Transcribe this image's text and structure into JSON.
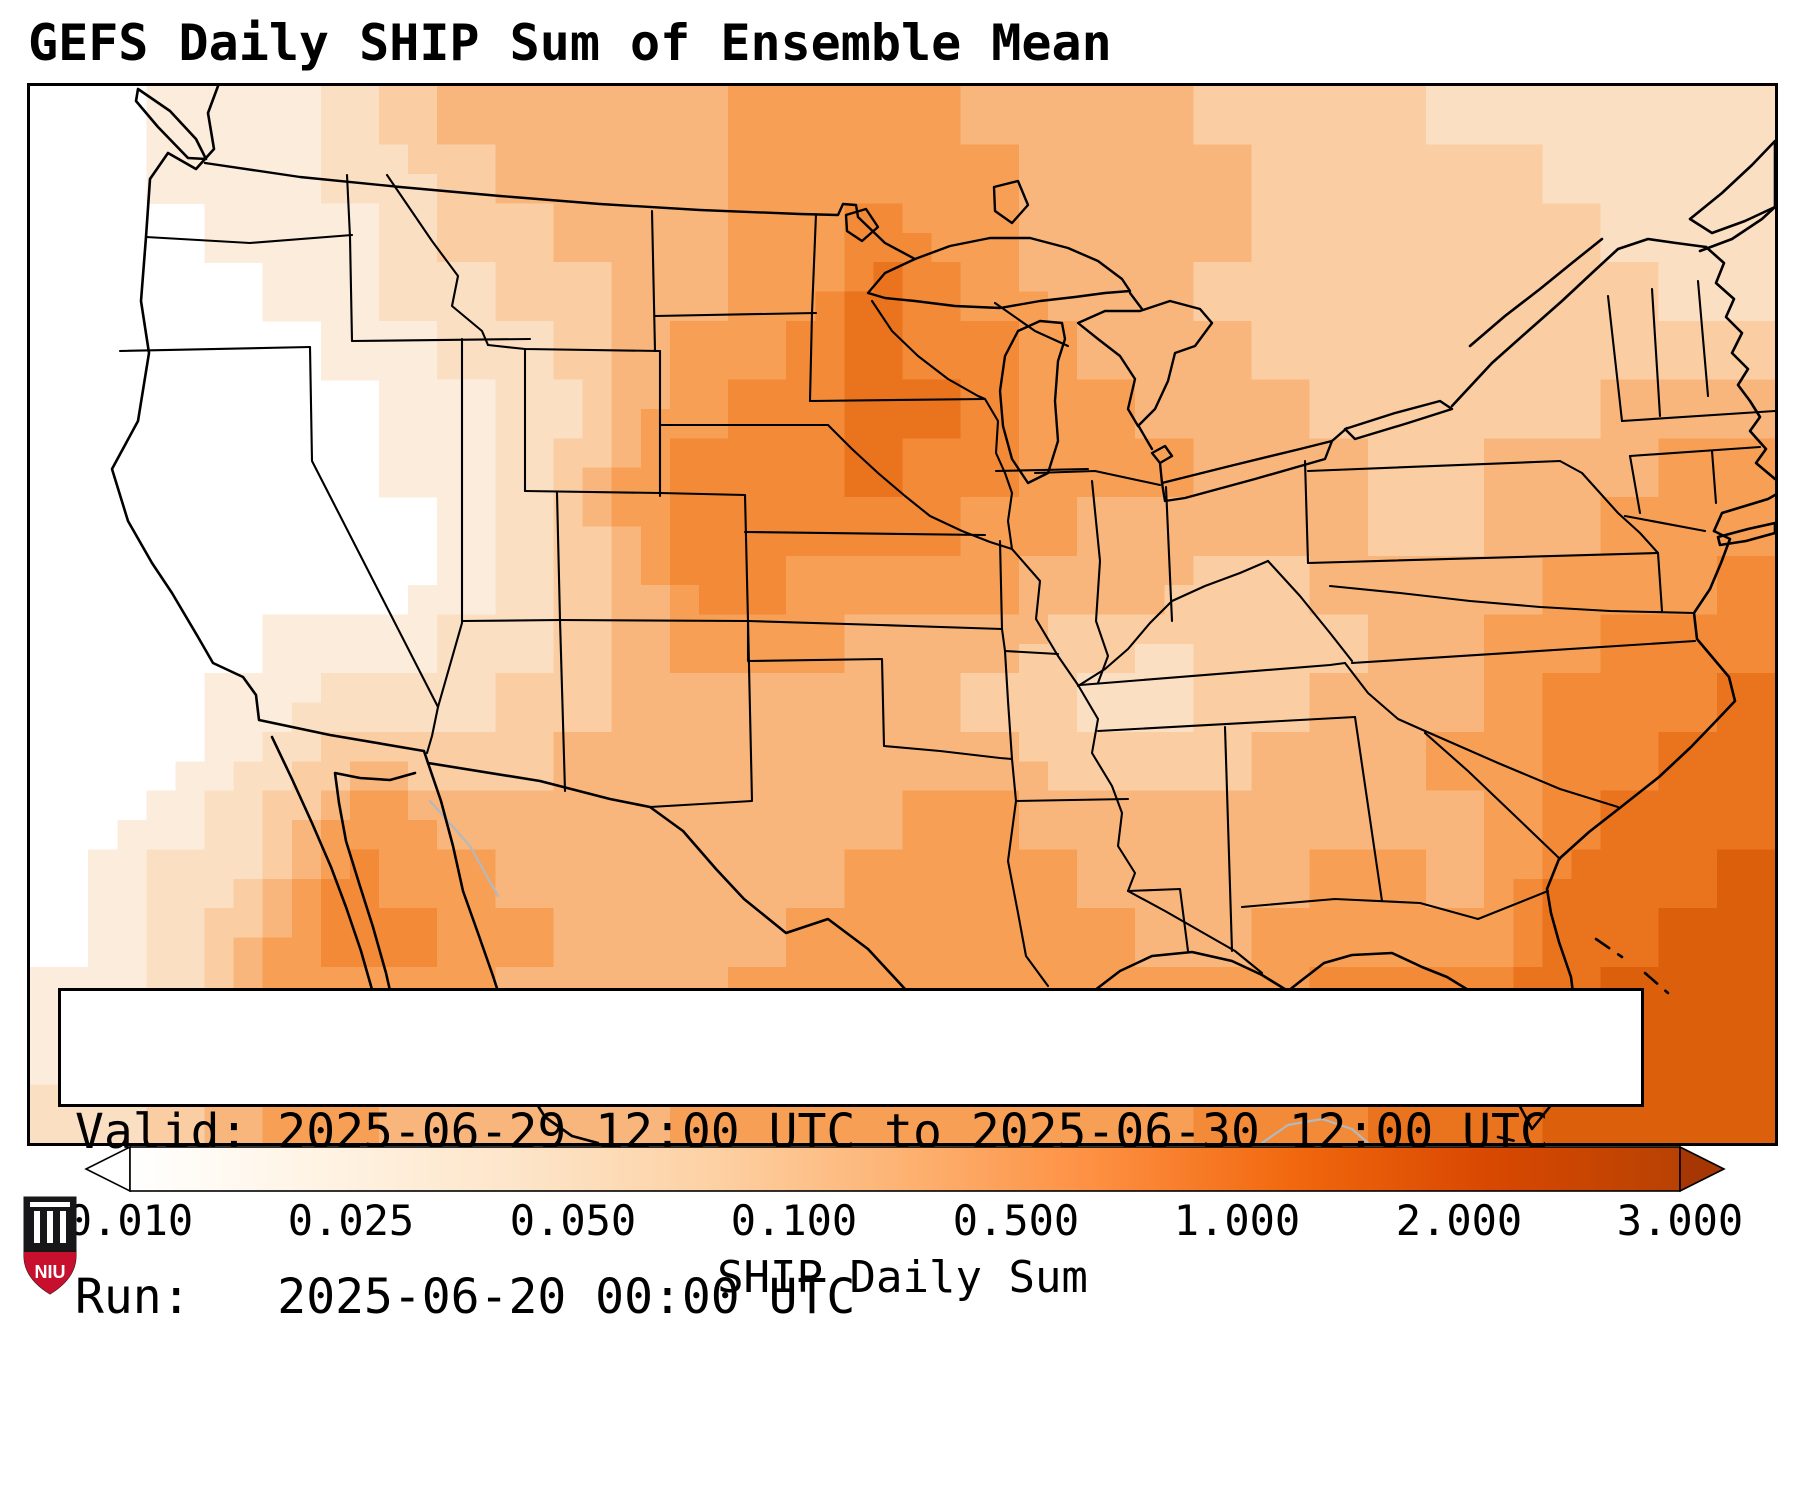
{
  "title": "GEFS Daily SHIP Sum of Ensemble Mean",
  "info_box": {
    "valid_line": "Valid: 2025-06-29 12:00 UTC to 2025-06-30 12:00 UTC",
    "run_line": "Run:   2025-06-20 00:00 UTC"
  },
  "colorbar": {
    "label": "SHIP Daily Sum",
    "ticks": [
      "0.010",
      "0.025",
      "0.050",
      "0.100",
      "0.500",
      "1.000",
      "2.000",
      "3.000"
    ],
    "colors": [
      "#ffffff",
      "#fff3e3",
      "#fde5c9",
      "#fdd1a4",
      "#fdb272",
      "#fd8f41",
      "#f1680e",
      "#d94801",
      "#b84203"
    ],
    "under": "#ffffff",
    "over": "#a63603"
  },
  "logo": {
    "text": "NIU"
  },
  "chart_data": {
    "type": "heatmap",
    "title": "GEFS Daily SHIP Sum of Ensemble Mean",
    "colorbar_label": "SHIP Daily Sum",
    "colorbar_ticks": [
      0.01,
      0.025,
      0.05,
      0.1,
      0.5,
      1.0,
      2.0,
      3.0
    ],
    "valid_start": "2025-06-29 12:00 UTC",
    "valid_end": "2025-06-30 12:00 UTC",
    "run": "2025-06-20 00:00 UTC",
    "region": "CONUS and surrounding waters",
    "grid_note": "Coarse 30x18 estimate of the SHIP daily-sum ensemble-mean field over the map area; each digit is a shading level 0-8.",
    "level_values": [
      0,
      0.015,
      0.035,
      0.07,
      0.2,
      0.4,
      0.8,
      1.5,
      2.5
    ],
    "level_colors": [
      "#ffffff",
      "#fcecdc",
      "#fbdfc3",
      "#fbcda3",
      "#f9b67c",
      "#f7a055",
      "#f28a38",
      "#ea731e",
      "#dc5f0c"
    ],
    "grid_rows": [
      "001112344444555544443333222222",
      "001112234444555554444333332222",
      "000111233444556554444333333222",
      "000011223344557654443333333322",
      "000001122345567665444333333333",
      "000000112245667765544433333444",
      "000000112356667665554443344455",
      "000000012356666655444443344555",
      "000000012346655554443344445556",
      "000011122345554443323334455666",
      "000112223344444433223344456667",
      "000123333444444443333444556677",
      "001235544444444554444444456777",
      "012246554444445555444455457778",
      "012356655444455555544555557788",
      "112455554444555555555566677888",
      "123455544444555555555666777888",
      "223455444445555555556667778888"
    ],
    "maxima_note": "Strongest values over MN/IA/NE/KS corridor and over the western Atlantic / Bahamas corner of the map"
  }
}
